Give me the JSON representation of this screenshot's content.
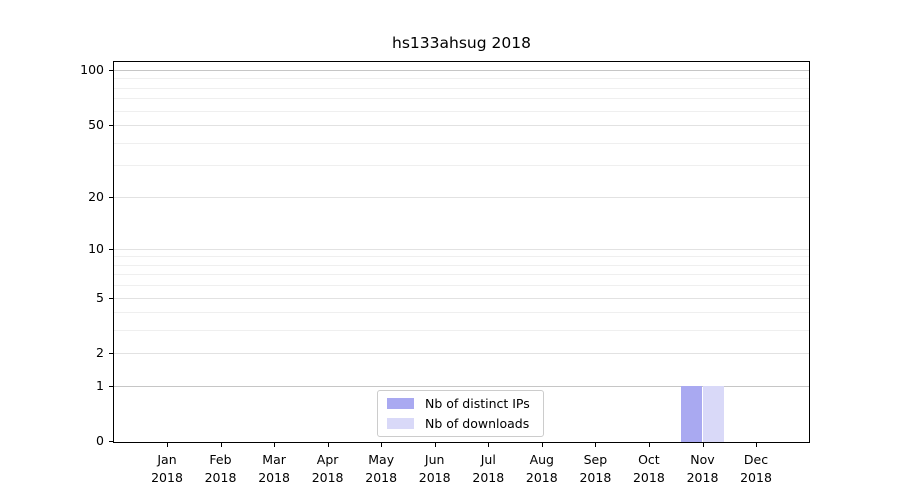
{
  "chart_data": {
    "type": "bar",
    "title": "hs133ahsug 2018",
    "categories": [
      "Jan",
      "Feb",
      "Mar",
      "Apr",
      "May",
      "Jun",
      "Jul",
      "Aug",
      "Sep",
      "Oct",
      "Nov",
      "Dec"
    ],
    "category_year": "2018",
    "series": [
      {
        "name": "Nb of distinct IPs",
        "color": "#a9a9f1",
        "values": [
          0,
          0,
          0,
          0,
          0,
          0,
          0,
          0,
          0,
          0,
          1,
          0
        ]
      },
      {
        "name": "Nb of downloads",
        "color": "#d9d9f8",
        "values": [
          0,
          0,
          0,
          0,
          0,
          0,
          0,
          0,
          0,
          0,
          1,
          0
        ]
      }
    ],
    "y_scale": "log1p",
    "y_ticks": [
      0,
      1,
      2,
      5,
      10,
      20,
      50,
      100
    ],
    "y_minor_gridlines": [
      3,
      4,
      6,
      7,
      8,
      9,
      30,
      40,
      60,
      70,
      80,
      90
    ],
    "y_emphasized_gridlines": [
      1,
      100
    ],
    "ylim": [
      0,
      110
    ],
    "grid": "horizontal",
    "legend_position": "bottom-center",
    "colors": {
      "axis": "#000000",
      "major_grid": "#e2e2e2",
      "emphasized_grid": "#c6c6c6",
      "minor_grid": "#efefef",
      "legend_border": "#cccccc"
    }
  }
}
